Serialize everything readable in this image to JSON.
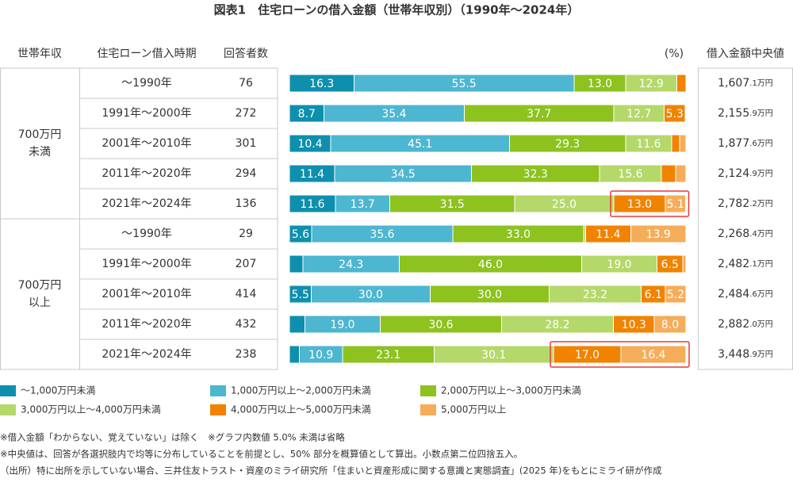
{
  "chart_data": {
    "type": "bar",
    "stacked": true,
    "orientation": "horizontal",
    "title": "図表1　住宅ローンの借入金額（世帯年収別）（1990年～2024年）",
    "headers": [
      "世帯年収",
      "住宅ローン借入時期",
      "回答者数",
      "(%)",
      "借入金額中央値"
    ],
    "xlim": [
      0,
      100
    ],
    "groups": [
      {
        "label": [
          "700万円",
          "未満"
        ],
        "rows": [
          {
            "period": "～1990年",
            "n": 76,
            "median_int": "1,607",
            "median_frac": ".1万円"
          },
          {
            "period": "1991年～2000年",
            "n": 272,
            "median_int": "2,155",
            "median_frac": ".9万円"
          },
          {
            "period": "2001年～2010年",
            "n": 301,
            "median_int": "1,877",
            "median_frac": ".6万円"
          },
          {
            "period": "2011年～2020年",
            "n": 294,
            "median_int": "2,124",
            "median_frac": ".9万円"
          },
          {
            "period": "2021年～2024年",
            "n": 136,
            "median_int": "2,782",
            "median_frac": ".2万円"
          }
        ]
      },
      {
        "label": [
          "700万円",
          "以上"
        ],
        "rows": [
          {
            "period": "～1990年",
            "n": 29,
            "median_int": "2,268",
            "median_frac": ".4万円"
          },
          {
            "period": "1991年～2000年",
            "n": 207,
            "median_int": "2,482",
            "median_frac": ".1万円"
          },
          {
            "period": "2001年～2010年",
            "n": 414,
            "median_int": "2,484",
            "median_frac": ".6万円"
          },
          {
            "period": "2011年～2020年",
            "n": 432,
            "median_int": "2,882",
            "median_frac": ".0万円"
          },
          {
            "period": "2021年～2024年",
            "n": 238,
            "median_int": "3,448",
            "median_frac": ".9万円"
          }
        ]
      }
    ],
    "series": [
      {
        "name": "～1,000万円未満",
        "color": "#0e8fad",
        "values": [
          16.3,
          8.7,
          10.4,
          11.4,
          11.6,
          5.6,
          3.4,
          5.5,
          3.9,
          2.5
        ],
        "value_labels": [
          "16.3",
          "8.7",
          "10.4",
          "11.4",
          "11.6",
          "5.6",
          null,
          "5.5",
          null,
          null
        ]
      },
      {
        "name": "1,000万円以上～2,000万円未満",
        "color": "#4db6d0",
        "values": [
          55.5,
          35.4,
          45.1,
          34.5,
          13.7,
          35.6,
          24.3,
          30.0,
          19.0,
          10.9
        ],
        "value_labels": [
          "55.5",
          "35.4",
          "45.1",
          "34.5",
          "13.7",
          "35.6",
          "24.3",
          "30.0",
          "19.0",
          "10.9"
        ]
      },
      {
        "name": "2,000万円以上～3,000万円未満",
        "color": "#8dc21f",
        "values": [
          13.0,
          37.7,
          29.3,
          32.3,
          31.5,
          33.0,
          46.0,
          30.0,
          30.6,
          23.1
        ],
        "value_labels": [
          "13.0",
          "37.7",
          "29.3",
          "32.3",
          "31.5",
          "33.0",
          "46.0",
          "30.0",
          "30.6",
          "23.1"
        ]
      },
      {
        "name": "3,000万円以上～4,000万円未満",
        "color": "#b5d86a",
        "values": [
          12.9,
          12.7,
          11.6,
          15.6,
          25.0,
          0.5,
          19.0,
          23.2,
          28.2,
          30.1
        ],
        "value_labels": [
          "12.9",
          "12.7",
          "11.6",
          "15.6",
          "25.0",
          null,
          "19.0",
          "23.2",
          "28.2",
          "30.1"
        ]
      },
      {
        "name": "4,000万円以上～5,000万円未満",
        "color": "#f08300",
        "values": [
          2.3,
          5.3,
          2.0,
          3.6,
          13.0,
          11.4,
          6.5,
          6.1,
          10.3,
          17.0
        ],
        "value_labels": [
          null,
          "5.3",
          null,
          null,
          "13.0",
          "11.4",
          "6.5",
          "6.1",
          "10.3",
          "17.0"
        ]
      },
      {
        "name": "5,000万円以上",
        "color": "#f5ad5a",
        "values": [
          0,
          0.2,
          1.6,
          2.6,
          5.1,
          13.9,
          0.8,
          5.2,
          8.0,
          16.4
        ],
        "value_labels": [
          null,
          null,
          null,
          null,
          "5.1",
          "13.9",
          null,
          "5.2",
          "8.0",
          "16.4"
        ]
      }
    ],
    "highlight": {
      "color": "#e8383d",
      "series": [
        4,
        5
      ],
      "rows": [
        4,
        9
      ]
    },
    "notes": [
      "※借入金額「わからない、覚えていない」は除く　※グラフ内数値 5.0% 未満は省略",
      "※中央値は、回答が各選択肢内で均等に分布していることを前提とし、50% 部分を概算値として算出。小数点第二位四捨五入。",
      "（出所）特に出所を示していない場合、三井住友トラスト・資産のミライ研究所「住まいと資産形成に関する意識と実態調査」(2025 年)をもとにミライ研が作成"
    ]
  }
}
